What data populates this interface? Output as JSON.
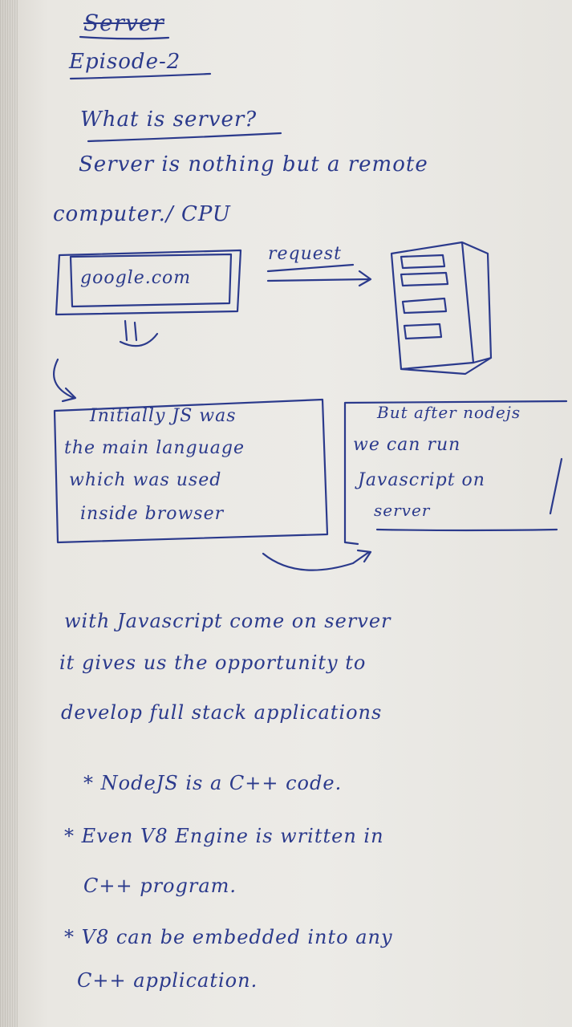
{
  "notes": {
    "heading_struck": "Server",
    "episode": "Episode-2",
    "question": "What is server?",
    "definition_line1": "Server is nothing but a remote",
    "definition_line2": "computer./ CPU",
    "diagram": {
      "browser_text": "google.com",
      "arrow_label": "request"
    },
    "box_left": [
      "Initially JS was",
      "the main language",
      "which was used",
      "inside browser"
    ],
    "box_right": [
      "But after nodejs",
      "we can run",
      "Javascript on",
      "server"
    ],
    "para_line1": "with Javascript come on server",
    "para_line2": "it gives us the opportunity to",
    "para_line3": "develop full stack applications",
    "bullets": [
      "* NodeJS is a C++ code.",
      "* Even V8 Engine is written in",
      "C++ program.",
      "* V8 can be embedded into any",
      "C++ application."
    ]
  }
}
